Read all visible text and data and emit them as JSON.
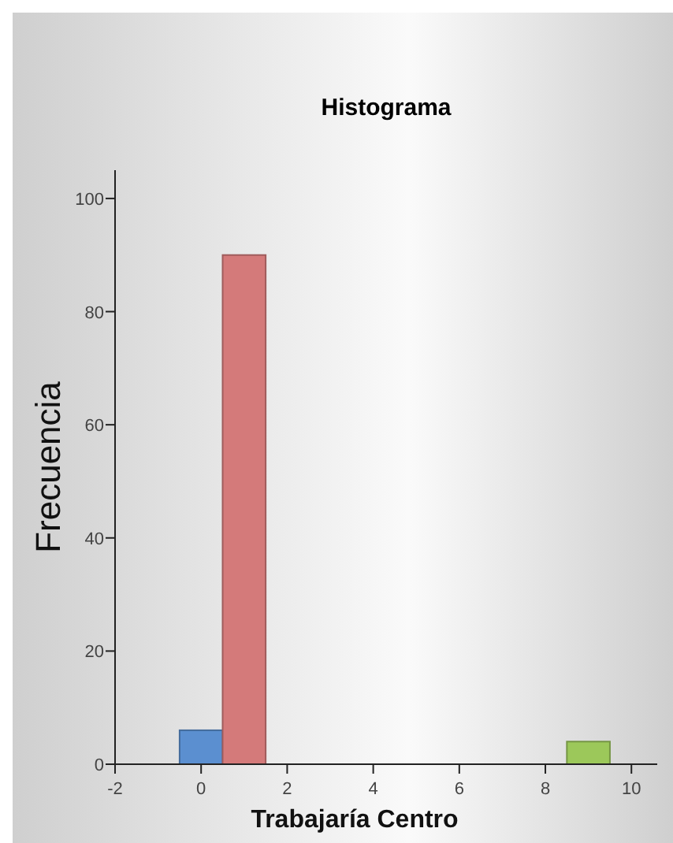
{
  "chart_data": {
    "type": "histogram",
    "title": "Histograma",
    "xlabel": "Trabajaría Centro",
    "ylabel": "Frecuencia",
    "bins": [
      -0.5,
      0.5,
      1.5,
      2.5,
      3.5,
      4.5,
      5.5,
      6.5,
      7.5,
      8.5,
      9.5
    ],
    "values": [
      6,
      90,
      0,
      0,
      0,
      0,
      0,
      0,
      0,
      4
    ],
    "colors": [
      "#5b8fd0",
      "#d47a7a",
      "#cccccc",
      "#cccccc",
      "#cccccc",
      "#cccccc",
      "#cccccc",
      "#cccccc",
      "#cccccc",
      "#9cc85a"
    ],
    "xlim": [
      -2,
      10.6
    ],
    "xticks": [
      -2,
      0,
      2,
      4,
      6,
      8,
      10
    ],
    "ylim": [
      0,
      105
    ],
    "yticks": [
      0,
      20,
      40,
      60,
      80,
      100
    ],
    "grid": false
  }
}
